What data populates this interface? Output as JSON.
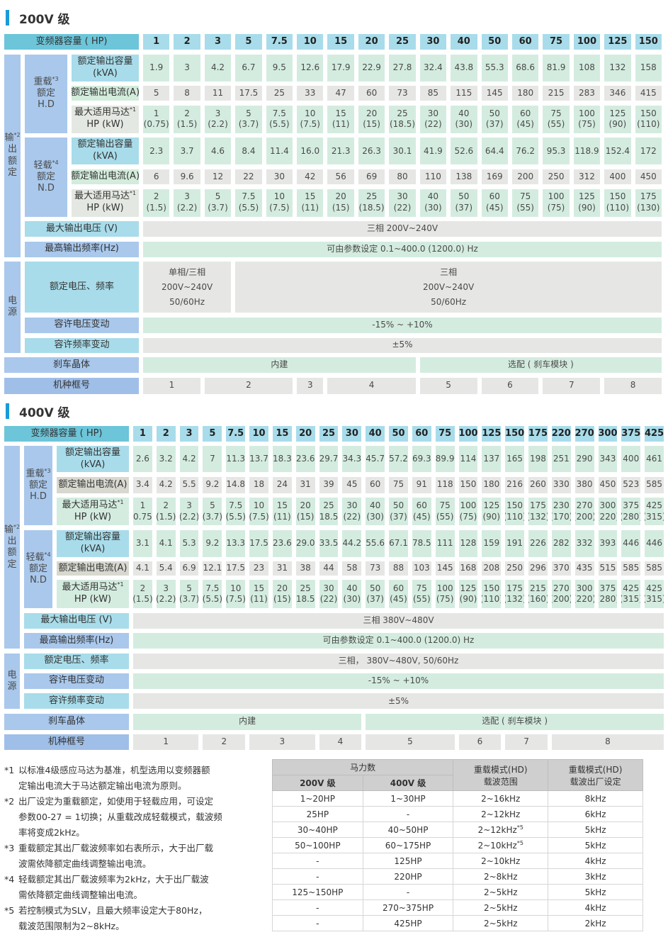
{
  "colors": {
    "accent": "#1a9bd7",
    "header_corner": "#6cc5d9",
    "header_cell": "#a8dcea",
    "label_blue": "#a9c8ec",
    "cell_green": "#d4ece0",
    "cell_gray": "#e6e6e4"
  },
  "t200": {
    "title": "200V 级",
    "capacity_label": "变频器容量 ( HP)",
    "hp": [
      "1",
      "2",
      "3",
      "5",
      "7.5",
      "10",
      "15",
      "20",
      "25",
      "30",
      "40",
      "50",
      "60",
      "75",
      "100",
      "125",
      "150"
    ],
    "output_group": [
      "输",
      "出",
      "额",
      "定"
    ],
    "output_note": "*2",
    "hd_group": [
      "重载",
      "额定",
      "H.D"
    ],
    "hd_note": "*3",
    "nd_group": [
      "轻载",
      "额定",
      "N.D"
    ],
    "nd_note": "*4",
    "kva_label": [
      "额定输出容量",
      "(kVA)"
    ],
    "current_label": "额定输出电流(A)",
    "motor_label": "最大适用马达",
    "motor_note": "*1",
    "motor_unit": "HP (kW)",
    "hd_kva": [
      "1.9",
      "3",
      "4.2",
      "6.7",
      "9.5",
      "12.6",
      "17.9",
      "22.9",
      "27.8",
      "32.4",
      "43.8",
      "55.3",
      "68.6",
      "81.9",
      "108",
      "132",
      "158"
    ],
    "hd_current": [
      "5",
      "8",
      "11",
      "17.5",
      "25",
      "33",
      "47",
      "60",
      "73",
      "85",
      "115",
      "145",
      "180",
      "215",
      "283",
      "346",
      "415"
    ],
    "hd_motor": [
      "1|(0.75)",
      "2|(1.5)",
      "3|(2.2)",
      "5|(3.7)",
      "7.5|(5.5)",
      "10|(7.5)",
      "15|(11)",
      "20|(15)",
      "25|(18.5)",
      "30|(22)",
      "40|(30)",
      "50|(37)",
      "60|(45)",
      "75|(55)",
      "100|(75)",
      "125|(90)",
      "150|(110)"
    ],
    "nd_kva": [
      "2.3",
      "3.7",
      "4.6",
      "8.4",
      "11.4",
      "16.0",
      "21.3",
      "26.3",
      "30.1",
      "41.9",
      "52.6",
      "64.4",
      "76.2",
      "95.3",
      "118.9",
      "152.4",
      "172"
    ],
    "nd_current": [
      "6",
      "9.6",
      "12",
      "22",
      "30",
      "42",
      "56",
      "69",
      "80",
      "110",
      "138",
      "169",
      "200",
      "250",
      "312",
      "400",
      "450"
    ],
    "nd_motor": [
      "2|(1.5)",
      "3|(2.2)",
      "5|(3.7)",
      "7.5|(5.5)",
      "10|(7.5)",
      "15|(11)",
      "20|(15)",
      "25|(18.5)",
      "30|(22)",
      "40|(30)",
      "50|(37)",
      "60|(45)",
      "75|(55)",
      "100|(75)",
      "125|(90)",
      "150|(110)",
      "175|(130)"
    ],
    "max_voltage_label": "最大输出电压 (V)",
    "max_voltage": "三相 200V~240V",
    "max_freq_label": "最高输出频率(Hz)",
    "max_freq": "可由参数设定 0.1~400.0 (1200.0) Hz",
    "power_group": [
      "电",
      "源"
    ],
    "rated_label": "额定电压、频率",
    "rated": [
      [
        "单相/三相",
        "200V~240V",
        "50/60Hz"
      ],
      [
        "三相",
        "200V~240V",
        "50/60Hz"
      ]
    ],
    "tol_voltage_label": "容许电压变动",
    "tol_voltage": "-15% ~ +10%",
    "tol_freq_label": "容许频率变动",
    "tol_freq": "±5%",
    "brake_label": "刹车晶体",
    "brake": [
      "内建",
      "选配 ( 刹车模块 )"
    ],
    "frame_label": "机种框号",
    "frame": [
      "1",
      "2",
      "3",
      "4",
      "5",
      "6",
      "7",
      "8"
    ]
  },
  "t400": {
    "title": "400V 级",
    "capacity_label": "变频器容量 ( HP)",
    "hp": [
      "1",
      "2",
      "3",
      "5",
      "7.5",
      "10",
      "15",
      "20",
      "25",
      "30",
      "40",
      "50",
      "60",
      "75",
      "100",
      "125",
      "150",
      "175",
      "220",
      "270",
      "300",
      "375",
      "425"
    ],
    "output_group": [
      "输",
      "出",
      "额",
      "定"
    ],
    "output_note": "*2",
    "hd_group": [
      "重载",
      "额定",
      "H.D"
    ],
    "hd_note": "*3",
    "nd_group": [
      "轻载",
      "额定",
      "N.D"
    ],
    "nd_note": "*4",
    "kva_label": [
      "额定输出容量",
      "(kVA)"
    ],
    "current_label": "额定输出电流(A)",
    "motor_label": "最大适用马达",
    "motor_note": "*1",
    "motor_unit": "HP (kW)",
    "hd_kva": [
      "2.6",
      "3.2",
      "4.2",
      "7",
      "11.3",
      "13.7",
      "18.3",
      "23.6",
      "29.7",
      "34.3",
      "45.7",
      "57.2",
      "69.3",
      "89.9",
      "114",
      "137",
      "165",
      "198",
      "251",
      "290",
      "343",
      "400",
      "461"
    ],
    "hd_current": [
      "3.4",
      "4.2",
      "5.5",
      "9.2",
      "14.8",
      "18",
      "24",
      "31",
      "39",
      "45",
      "60",
      "75",
      "91",
      "118",
      "150",
      "180",
      "216",
      "260",
      "330",
      "380",
      "450",
      "523",
      "585"
    ],
    "hd_motor": [
      "1|(0.75)",
      "2|(1.5)",
      "3|(2.2)",
      "5|(3.7)",
      "7.5|(5.5)",
      "10|(7.5)",
      "15|(11)",
      "20|(15)",
      "25|(18.5)",
      "30|(22)",
      "40|(30)",
      "50|(37)",
      "60|(45)",
      "75|(55)",
      "100|(75)",
      "125|(90)",
      "150|(110)",
      "175|(132)",
      "230|(170)",
      "270|(200)",
      "300|(220)",
      "375|(280)",
      "425|(315)"
    ],
    "nd_kva": [
      "3.1",
      "4.1",
      "5.3",
      "9.2",
      "13.3",
      "17.5",
      "23.6",
      "29.0",
      "33.5",
      "44.2",
      "55.6",
      "67.1",
      "78.5",
      "111",
      "128",
      "159",
      "191",
      "226",
      "282",
      "332",
      "393",
      "446",
      "446"
    ],
    "nd_current": [
      "4.1",
      "5.4",
      "6.9",
      "12.1",
      "17.5",
      "23",
      "31",
      "38",
      "44",
      "58",
      "73",
      "88",
      "103",
      "145",
      "168",
      "208",
      "250",
      "296",
      "370",
      "435",
      "515",
      "585",
      "585"
    ],
    "nd_motor": [
      "2|(1.5)",
      "3|(2.2)",
      "5|(3.7)",
      "7.5|(5.5)",
      "10|(7.5)",
      "15|(11)",
      "20|(15)",
      "25|(18.5)",
      "30|(22)",
      "40|(30)",
      "50|(37)",
      "60|(45)",
      "75|(55)",
      "100|(75)",
      "125|(90)",
      "150|(110)",
      "175|(132)",
      "215|(160)",
      "270|(200)",
      "300|(220)",
      "375|(280)",
      "425|(315)",
      "425|(315)"
    ],
    "max_voltage_label": "最大输出电压 (V)",
    "max_voltage": "三相 380V~480V",
    "max_freq_label": "最高输出频率(Hz)",
    "max_freq": "可由参数设定  0.1~400.0 (1200.0) Hz",
    "power_group": [
      "电",
      "源"
    ],
    "rated_label": "额定电压、频率",
    "rated": [
      [
        "三相， 380V~480V, 50/60Hz"
      ]
    ],
    "tol_voltage_label": "容许电压变动",
    "tol_voltage": "-15% ~ +10%",
    "tol_freq_label": "容许频率变动",
    "tol_freq": "±5%",
    "brake_label": "刹车晶体",
    "brake": [
      "内建",
      "选配 ( 刹车模块 )"
    ],
    "frame_label": "机种框号",
    "frame": [
      "1",
      "2",
      "3",
      "4",
      "5",
      "6",
      "7",
      "8"
    ]
  },
  "notes": [
    {
      "key": "*1",
      "lines": [
        "以标准4级感应马达为基准，机型选用以变频器额",
        "定输出电流大于马达额定输出电流为原则。"
      ]
    },
    {
      "key": "*2",
      "lines": [
        "出厂设定为重载额定，如使用于轻载应用，可设定",
        "参数00-27 = 1切换；从重载改成轻载模式，载波频",
        "率将变成2kHz。"
      ]
    },
    {
      "key": "*3",
      "lines": [
        "重载额定其出厂载波频率如右表所示，大于出厂载",
        "波需依降额定曲线调整输出电流。"
      ]
    },
    {
      "key": "*4",
      "lines": [
        "轻载额定其出厂载波频率为2kHz，大于出厂载波",
        "需依降额定曲线调整输出电流。"
      ]
    },
    {
      "key": "*5",
      "lines": [
        "若控制模式为SLV，且最大频率设定大于80Hz，",
        "载波范围限制为2~8kHz。"
      ]
    }
  ],
  "carrier_table": {
    "hp_header": "马力数",
    "col_200": "200V 级",
    "col_400": "400V 级",
    "col_range": [
      "重载模式(HD)",
      "载波范围"
    ],
    "col_default": [
      "重载模式(HD)",
      "载波出厂设定"
    ],
    "rows": [
      [
        "1~20HP",
        "1~30HP",
        "2~16kHz",
        "",
        "8kHz"
      ],
      [
        "25HP",
        "-",
        "2~12kHz",
        "",
        "6kHz"
      ],
      [
        "30~40HP",
        "40~50HP",
        "2~12kHz",
        "*5",
        "5kHz"
      ],
      [
        "50~100HP",
        "60~175HP",
        "2~10kHz",
        "*5",
        "5kHz"
      ],
      [
        "-",
        "125HP",
        "2~10kHz",
        "",
        "4kHz"
      ],
      [
        "-",
        "220HP",
        "2~8kHz",
        "",
        "3kHz"
      ],
      [
        "125~150HP",
        "-",
        "2~5kHz",
        "",
        "5kHz"
      ],
      [
        "-",
        "270~375HP",
        "2~5kHz",
        "",
        "4kHz"
      ],
      [
        "-",
        "425HP",
        "2~5kHz",
        "",
        "2kHz"
      ]
    ]
  }
}
